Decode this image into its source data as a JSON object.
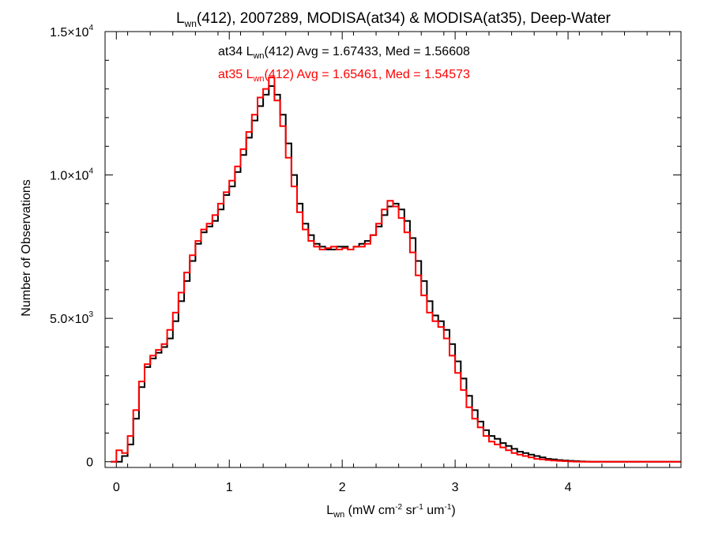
{
  "chart_data": {
    "type": "histogram-step",
    "title": {
      "prefix": "L",
      "sub": "wn",
      "rest": "(412), 2007289, MODISA(at34) & MODISA(at35), Deep-Water"
    },
    "xlabel": {
      "prefix": "L",
      "sub": "wn",
      "p1": " (mW cm",
      "s1": "-2",
      "p2": " sr",
      "s2": "-1",
      "p3": " um",
      "s3": "-1",
      "p4": ")"
    },
    "ylabel": "Number of Observations",
    "xlim": [
      -0.1,
      5.0
    ],
    "ylim": [
      -200,
      15000
    ],
    "xticks": [
      0,
      1,
      2,
      3,
      4
    ],
    "yticks": [
      {
        "value": 0,
        "mant": "0",
        "exp": ""
      },
      {
        "value": 5000,
        "mant": "5.0×10",
        "exp": "3"
      },
      {
        "value": 10000,
        "mant": "1.0×10",
        "exp": "4"
      },
      {
        "value": 15000,
        "mant": "1.5×10",
        "exp": "4"
      }
    ],
    "annotations": [
      {
        "color": "#000000",
        "pre": "at34 L",
        "sub": "wn",
        "post": "(412) Avg = 1.67433, Med = 1.56608"
      },
      {
        "color": "#ff0000",
        "pre": "at35 L",
        "sub": "wn",
        "post": "(412) Avg = 1.65461, Med = 1.54573"
      }
    ],
    "series": [
      {
        "color": "#000000",
        "x": [
          -0.05,
          0.0,
          0.05,
          0.1,
          0.15,
          0.2,
          0.25,
          0.3,
          0.35,
          0.4,
          0.45,
          0.5,
          0.55,
          0.6,
          0.65,
          0.7,
          0.75,
          0.8,
          0.85,
          0.9,
          0.95,
          1.0,
          1.05,
          1.1,
          1.15,
          1.2,
          1.25,
          1.3,
          1.35,
          1.4,
          1.45,
          1.5,
          1.55,
          1.6,
          1.65,
          1.7,
          1.75,
          1.8,
          1.85,
          1.9,
          1.95,
          2.0,
          2.05,
          2.1,
          2.15,
          2.2,
          2.25,
          2.3,
          2.35,
          2.4,
          2.45,
          2.5,
          2.55,
          2.6,
          2.65,
          2.7,
          2.75,
          2.8,
          2.85,
          2.9,
          2.95,
          3.0,
          3.05,
          3.1,
          3.15,
          3.2,
          3.25,
          3.3,
          3.35,
          3.4,
          3.45,
          3.5,
          3.55,
          3.6,
          3.65,
          3.7,
          3.75,
          3.8,
          3.85,
          3.9,
          3.95,
          4.0,
          4.05,
          4.1,
          4.15,
          4.2,
          4.3,
          4.5,
          5.0
        ],
        "y": [
          0,
          0,
          200,
          600,
          1500,
          2600,
          3300,
          3600,
          3800,
          4000,
          4300,
          4900,
          5600,
          6300,
          7000,
          7600,
          8000,
          8200,
          8400,
          8800,
          9300,
          9600,
          10100,
          10700,
          11300,
          11900,
          12400,
          12800,
          13100,
          12800,
          12100,
          11100,
          10000,
          9000,
          8300,
          7900,
          7600,
          7500,
          7400,
          7400,
          7500,
          7500,
          7400,
          7500,
          7600,
          7700,
          7900,
          8200,
          8600,
          8900,
          9000,
          8800,
          8400,
          7800,
          7000,
          6300,
          5600,
          5100,
          4900,
          4600,
          4100,
          3500,
          2900,
          2300,
          1800,
          1400,
          1100,
          900,
          800,
          650,
          550,
          450,
          350,
          300,
          250,
          200,
          150,
          100,
          80,
          60,
          40,
          30,
          20,
          10,
          5,
          0,
          0,
          0,
          0
        ]
      },
      {
        "color": "#ff0000",
        "x": [
          -0.05,
          0.0,
          0.05,
          0.1,
          0.15,
          0.2,
          0.25,
          0.3,
          0.35,
          0.4,
          0.45,
          0.5,
          0.55,
          0.6,
          0.65,
          0.7,
          0.75,
          0.8,
          0.85,
          0.9,
          0.95,
          1.0,
          1.05,
          1.1,
          1.15,
          1.2,
          1.25,
          1.3,
          1.35,
          1.4,
          1.45,
          1.5,
          1.55,
          1.6,
          1.65,
          1.7,
          1.75,
          1.8,
          1.85,
          1.9,
          1.95,
          2.0,
          2.05,
          2.1,
          2.15,
          2.2,
          2.25,
          2.3,
          2.35,
          2.4,
          2.45,
          2.5,
          2.55,
          2.6,
          2.65,
          2.7,
          2.75,
          2.8,
          2.85,
          2.9,
          2.95,
          3.0,
          3.05,
          3.1,
          3.15,
          3.2,
          3.25,
          3.3,
          3.35,
          3.4,
          3.45,
          3.5,
          3.55,
          3.6,
          3.65,
          3.7,
          3.75,
          3.8,
          3.85,
          3.9,
          3.95,
          4.0,
          4.05,
          4.1,
          4.15,
          4.2,
          4.3,
          4.5,
          5.0
        ],
        "y": [
          0,
          400,
          300,
          900,
          1800,
          2800,
          3400,
          3700,
          3900,
          4100,
          4600,
          5200,
          5900,
          6600,
          7200,
          7700,
          8100,
          8300,
          8600,
          9000,
          9400,
          9800,
          10300,
          10900,
          11500,
          12100,
          12700,
          13000,
          13400,
          12600,
          11700,
          10600,
          9600,
          8700,
          8100,
          7700,
          7500,
          7400,
          7450,
          7500,
          7400,
          7450,
          7400,
          7500,
          7500,
          7600,
          7900,
          8300,
          8800,
          9100,
          8900,
          8500,
          8000,
          7300,
          6500,
          5800,
          5200,
          4900,
          4700,
          4300,
          3700,
          3100,
          2500,
          1900,
          1500,
          1200,
          900,
          700,
          600,
          500,
          400,
          300,
          250,
          200,
          150,
          100,
          80,
          60,
          40,
          30,
          20,
          10,
          5,
          0,
          0,
          0,
          0,
          0,
          0
        ]
      }
    ]
  }
}
